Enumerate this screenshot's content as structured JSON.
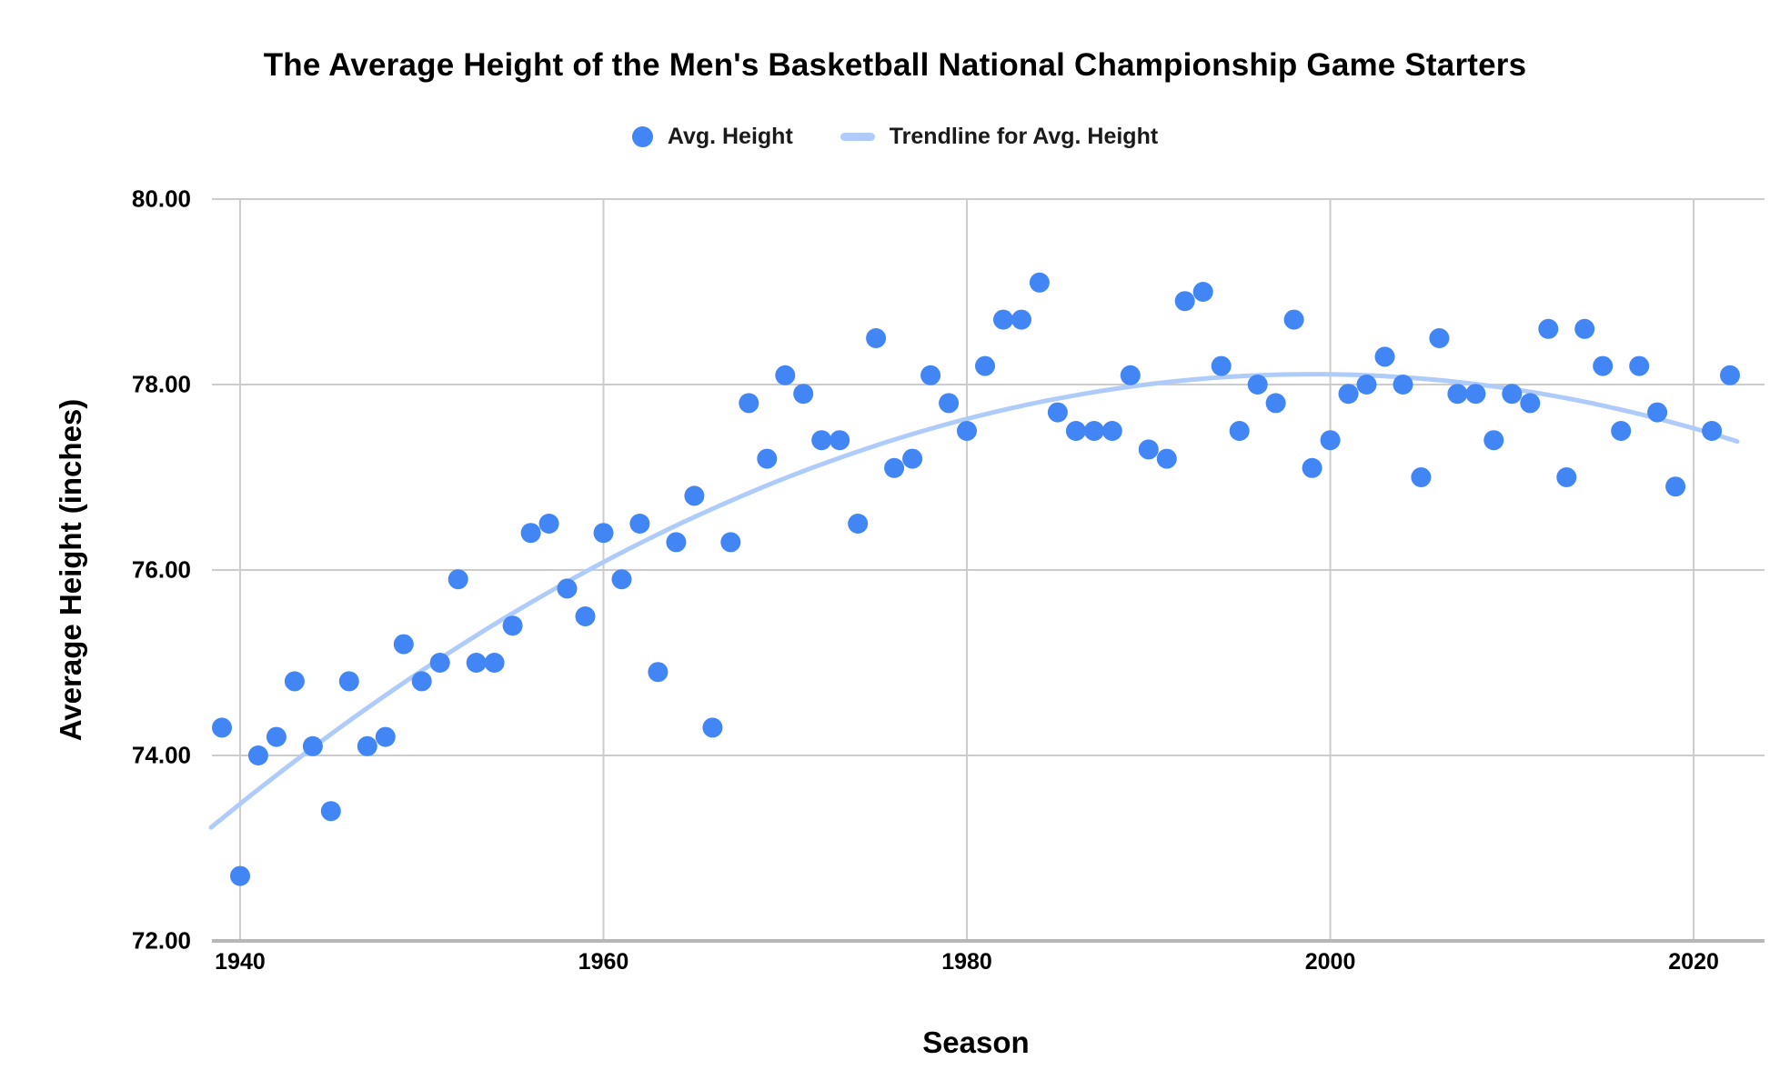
{
  "chart_data": {
    "type": "scatter",
    "title": "The Average Height of the Men's Basketball National Championship Game Starters",
    "xlabel": "Season",
    "ylabel": "Average Height (inches)",
    "legend": [
      {
        "label": "Avg. Height",
        "swatch": "point",
        "color": "#4285F4"
      },
      {
        "label": "Trendline for Avg. Height",
        "swatch": "line",
        "color": "#AECBFA"
      }
    ],
    "legend_position": "top",
    "grid": true,
    "xlim": [
      1938.45,
      2023.9
    ],
    "ylim": [
      72,
      80
    ],
    "x_ticks": [
      {
        "value": 1940,
        "label": "1940"
      },
      {
        "value": 1960,
        "label": "1960"
      },
      {
        "value": 1980,
        "label": "1980"
      },
      {
        "value": 2000,
        "label": "2000"
      },
      {
        "value": 2020,
        "label": "2020"
      }
    ],
    "y_ticks": [
      {
        "value": 72,
        "label": "72.00"
      },
      {
        "value": 74,
        "label": "74.00"
      },
      {
        "value": 76,
        "label": "76.00"
      },
      {
        "value": 78,
        "label": "78.00"
      },
      {
        "value": 80,
        "label": "80.00"
      }
    ],
    "series": [
      {
        "name": "Avg. Height",
        "points": [
          [
            1939,
            74.3
          ],
          [
            1940,
            72.7
          ],
          [
            1941,
            74.0
          ],
          [
            1942,
            74.2
          ],
          [
            1943,
            74.8
          ],
          [
            1944,
            74.1
          ],
          [
            1945,
            73.4
          ],
          [
            1946,
            74.8
          ],
          [
            1947,
            74.1
          ],
          [
            1948,
            74.2
          ],
          [
            1949,
            75.2
          ],
          [
            1950,
            74.8
          ],
          [
            1951,
            75.0
          ],
          [
            1952,
            75.9
          ],
          [
            1953,
            75.0
          ],
          [
            1954,
            75.0
          ],
          [
            1955,
            75.4
          ],
          [
            1956,
            76.4
          ],
          [
            1957,
            76.5
          ],
          [
            1958,
            75.8
          ],
          [
            1959,
            75.5
          ],
          [
            1960,
            76.4
          ],
          [
            1961,
            75.9
          ],
          [
            1962,
            76.5
          ],
          [
            1963,
            74.9
          ],
          [
            1964,
            76.3
          ],
          [
            1965,
            76.8
          ],
          [
            1966,
            74.3
          ],
          [
            1967,
            76.3
          ],
          [
            1968,
            77.8
          ],
          [
            1969,
            77.2
          ],
          [
            1970,
            78.1
          ],
          [
            1971,
            77.9
          ],
          [
            1972,
            77.4
          ],
          [
            1973,
            77.4
          ],
          [
            1974,
            76.5
          ],
          [
            1975,
            78.5
          ],
          [
            1976,
            77.1
          ],
          [
            1977,
            77.2
          ],
          [
            1978,
            78.1
          ],
          [
            1979,
            77.8
          ],
          [
            1980,
            77.5
          ],
          [
            1981,
            78.2
          ],
          [
            1982,
            78.7
          ],
          [
            1983,
            78.7
          ],
          [
            1984,
            79.1
          ],
          [
            1985,
            77.7
          ],
          [
            1986,
            77.5
          ],
          [
            1987,
            77.5
          ],
          [
            1988,
            77.5
          ],
          [
            1989,
            78.1
          ],
          [
            1990,
            77.3
          ],
          [
            1991,
            77.2
          ],
          [
            1992,
            78.9
          ],
          [
            1993,
            79.0
          ],
          [
            1994,
            78.2
          ],
          [
            1995,
            77.5
          ],
          [
            1996,
            78.0
          ],
          [
            1997,
            77.8
          ],
          [
            1998,
            78.7
          ],
          [
            1999,
            77.1
          ],
          [
            2000,
            77.4
          ],
          [
            2001,
            77.9
          ],
          [
            2002,
            78.0
          ],
          [
            2003,
            78.3
          ],
          [
            2004,
            78.0
          ],
          [
            2005,
            77.0
          ],
          [
            2006,
            78.5
          ],
          [
            2007,
            77.9
          ],
          [
            2008,
            77.9
          ],
          [
            2009,
            77.4
          ],
          [
            2010,
            77.9
          ],
          [
            2011,
            77.8
          ],
          [
            2012,
            78.6
          ],
          [
            2013,
            77.0
          ],
          [
            2014,
            78.6
          ],
          [
            2015,
            78.2
          ],
          [
            2016,
            77.5
          ],
          [
            2017,
            78.2
          ],
          [
            2018,
            77.7
          ],
          [
            2019,
            76.9
          ],
          [
            2021,
            77.5
          ],
          [
            2022,
            78.1
          ]
        ]
      }
    ],
    "trendline": {
      "for": "Avg. Height",
      "type": "quadratic",
      "base_year": 1939,
      "coefficients": [
        73.32,
        0.1596,
        -0.001329
      ],
      "domain": [
        1938.4,
        2022.4
      ]
    },
    "colors": {
      "point": "#4285F4",
      "trendline": "#AECBFA",
      "gridline": "#CCCCCC",
      "axis_line": "#B7B7B7",
      "text": "#000000",
      "background": "#FFFFFF"
    }
  }
}
